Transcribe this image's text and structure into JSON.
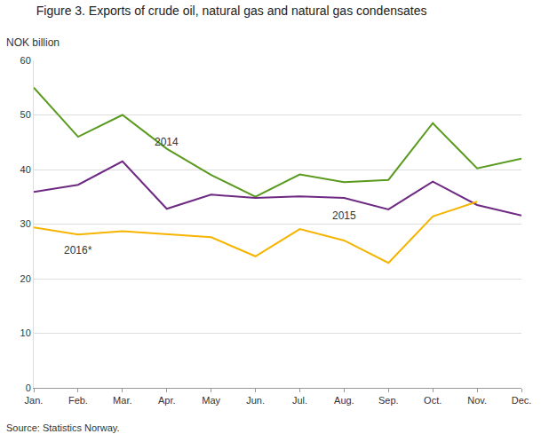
{
  "chart_data": {
    "type": "line",
    "title": "Figure 3. Exports of crude oil, natural gas and natural gas condensates",
    "y_label": "NOK billion",
    "source": "Source: Statistics Norway.",
    "categories": [
      "Jan.",
      "Feb.",
      "Mar.",
      "Apr.",
      "May",
      "Jun.",
      "Jul.",
      "Aug.",
      "Sep.",
      "Oct.",
      "Nov.",
      "Dec."
    ],
    "series": [
      {
        "name": "2014",
        "color": "#5a9a1e",
        "values": [
          55,
          46,
          50,
          43.8,
          39,
          35,
          39.1,
          37.7,
          38.1,
          48.5,
          40.2,
          42
        ]
      },
      {
        "name": "2015",
        "color": "#6e2a82",
        "values": [
          35.9,
          37.2,
          41.5,
          32.8,
          35.4,
          34.8,
          35.1,
          34.8,
          32.7,
          37.8,
          33.5,
          31.6
        ]
      },
      {
        "name": "2016*",
        "color": "#f6b400",
        "values": [
          29.4,
          28.1,
          28.7,
          28.1,
          27.6,
          24.1,
          29.1,
          27.0,
          22.9,
          31.4,
          34.1,
          null
        ]
      }
    ],
    "annotations": [
      {
        "text": "2014",
        "x": "Apr.",
        "y": 45
      },
      {
        "text": "2015",
        "x": "Aug.",
        "y": 31.5
      },
      {
        "text": "2016*",
        "x": "Feb.",
        "y": 25.2
      }
    ],
    "ylim": [
      0,
      60
    ],
    "yticks": [
      0,
      10,
      20,
      30,
      40,
      50,
      60
    ],
    "grid": true
  }
}
